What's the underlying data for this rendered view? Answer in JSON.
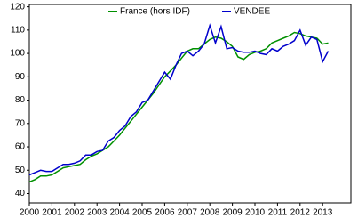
{
  "chart_data": {
    "type": "line",
    "categories": [
      "2000",
      null,
      null,
      null,
      "2001",
      null,
      null,
      null,
      "2002",
      null,
      null,
      null,
      "2003",
      null,
      null,
      null,
      "2004",
      null,
      null,
      null,
      "2005",
      null,
      null,
      null,
      "2006",
      null,
      null,
      null,
      "2007",
      null,
      null,
      null,
      "2008",
      null,
      null,
      null,
      "2009",
      null,
      null,
      null,
      "2010",
      null,
      null,
      null,
      "2011",
      null,
      null,
      null,
      "2012",
      null,
      null,
      null,
      "2013",
      null
    ],
    "series": [
      {
        "name": "France (hors IDF)",
        "color": "#009000",
        "values": [
          45,
          46,
          47.5,
          47.5,
          48,
          49.5,
          51,
          51.5,
          52,
          52.5,
          54.5,
          56,
          57,
          58.5,
          60,
          62.5,
          65,
          68,
          71,
          74,
          77,
          80,
          83,
          86.5,
          90,
          92.5,
          95,
          98,
          101,
          102,
          102,
          104,
          106,
          107,
          106.5,
          105,
          103,
          98.5,
          97.5,
          99.5,
          100.5,
          101,
          102,
          104.5,
          105.5,
          106.5,
          107.5,
          109,
          108.5,
          107.5,
          107,
          106.5,
          104,
          104.5
        ]
      },
      {
        "name": "VENDEE",
        "color": "#0000cc",
        "values": [
          48,
          49,
          50,
          49.5,
          49.5,
          51,
          52.5,
          52.5,
          53,
          54,
          56.5,
          56.5,
          58,
          58.5,
          62.5,
          64,
          67,
          69,
          73,
          75,
          79,
          80,
          84,
          88,
          92,
          89,
          95,
          100,
          101,
          99,
          101,
          104,
          112,
          104.5,
          111.5,
          102,
          102.5,
          101,
          100.5,
          100.5,
          101,
          100,
          99.5,
          102,
          101,
          103,
          104,
          105.5,
          110,
          103.5,
          107,
          106,
          96.5,
          101
        ]
      }
    ],
    "ylim": [
      36,
      121
    ],
    "yticks": [
      40,
      50,
      60,
      70,
      80,
      90,
      100,
      110,
      120
    ],
    "grid": false
  }
}
